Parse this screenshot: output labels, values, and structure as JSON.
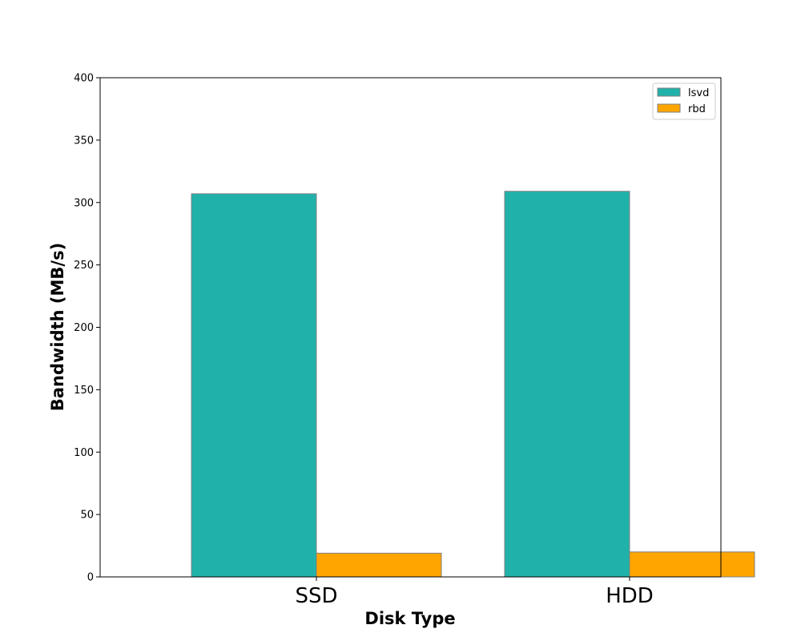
{
  "chart_data": {
    "type": "bar",
    "categories": [
      "SSD",
      "HDD"
    ],
    "series": [
      {
        "name": "lsvd",
        "values": [
          307,
          309
        ],
        "color": "#20b2aa"
      },
      {
        "name": "rbd",
        "values": [
          19,
          20
        ],
        "color": "#ffa500"
      }
    ],
    "xlabel": "Disk Type",
    "ylabel": "Bandwidth (MB/s)",
    "ylim": [
      0,
      400
    ],
    "yticks": [
      0,
      50,
      100,
      150,
      200,
      250,
      300,
      350,
      400
    ],
    "grid": false,
    "legend_position": "top-right",
    "bar_edge_color": "#808080"
  }
}
